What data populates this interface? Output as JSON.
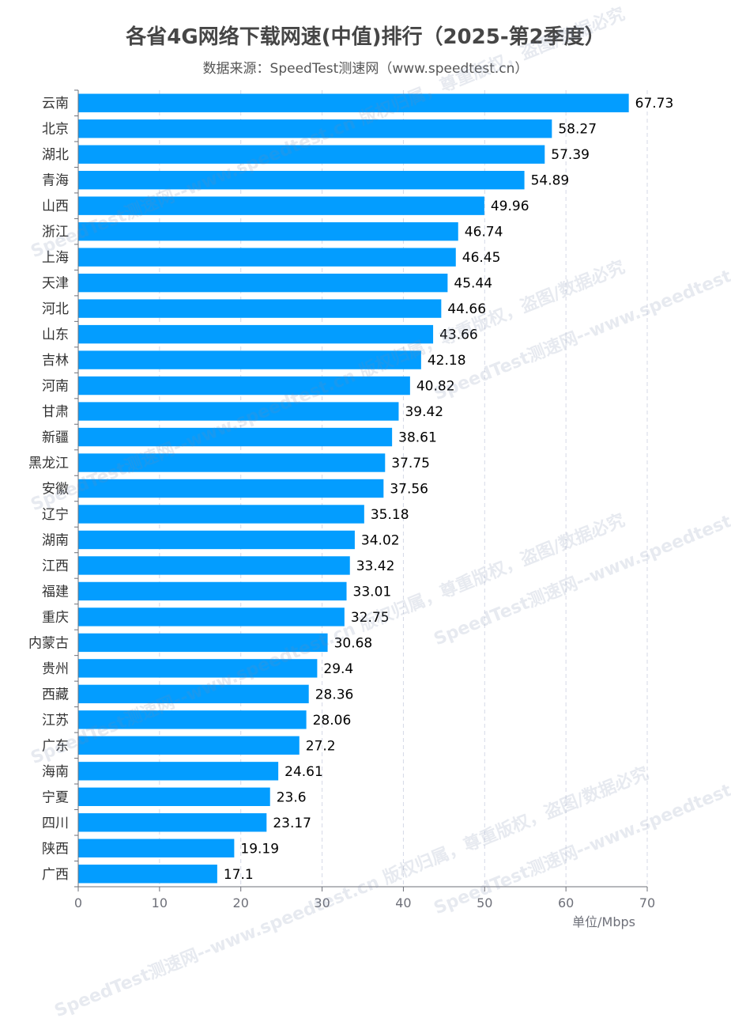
{
  "title": "各省4G网络下载网速(中值)排行（2025-第2季度）",
  "subtitle": "数据来源：SpeedTest测速网（www.speedtest.cn）",
  "watermark": "SpeedTest测速网--www.speedtest.cn  版权归属，尊重版权，盗图/数据必究",
  "colors": {
    "bar": "#039dff",
    "axis": "#6e7079",
    "grid": "#d6d9e6",
    "label": "#000000"
  },
  "chart_data": {
    "type": "bar",
    "orientation": "horizontal",
    "categories": [
      "云南",
      "北京",
      "湖北",
      "青海",
      "山西",
      "浙江",
      "上海",
      "天津",
      "河北",
      "山东",
      "吉林",
      "河南",
      "甘肃",
      "新疆",
      "黑龙江",
      "安徽",
      "辽宁",
      "湖南",
      "江西",
      "福建",
      "重庆",
      "内蒙古",
      "贵州",
      "西藏",
      "江苏",
      "广东",
      "海南",
      "宁夏",
      "四川",
      "陕西",
      "广西"
    ],
    "values": [
      67.73,
      58.27,
      57.39,
      54.89,
      49.96,
      46.74,
      46.45,
      45.44,
      44.66,
      43.66,
      42.18,
      40.82,
      39.42,
      38.61,
      37.75,
      37.56,
      35.18,
      34.02,
      33.42,
      33.01,
      32.75,
      30.68,
      29.4,
      28.36,
      28.06,
      27.2,
      24.61,
      23.6,
      23.17,
      19.19,
      17.1
    ],
    "value_labels": [
      "67.73",
      "58.27",
      "57.39",
      "54.89",
      "49.96",
      "46.74",
      "46.45",
      "45.44",
      "44.66",
      "43.66",
      "42.18",
      "40.82",
      "39.42",
      "38.61",
      "37.75",
      "37.56",
      "35.18",
      "34.02",
      "33.42",
      "33.01",
      "32.75",
      "30.68",
      "29.4",
      "28.36",
      "28.06",
      "27.2",
      "24.61",
      "23.6",
      "23.17",
      "19.19",
      "17.1"
    ],
    "xlim": [
      0,
      70
    ],
    "xticks": [
      "0",
      "10",
      "20",
      "30",
      "40",
      "50",
      "60",
      "70"
    ],
    "xlabel": "单位/Mbps",
    "grid": "vertical dashed"
  }
}
